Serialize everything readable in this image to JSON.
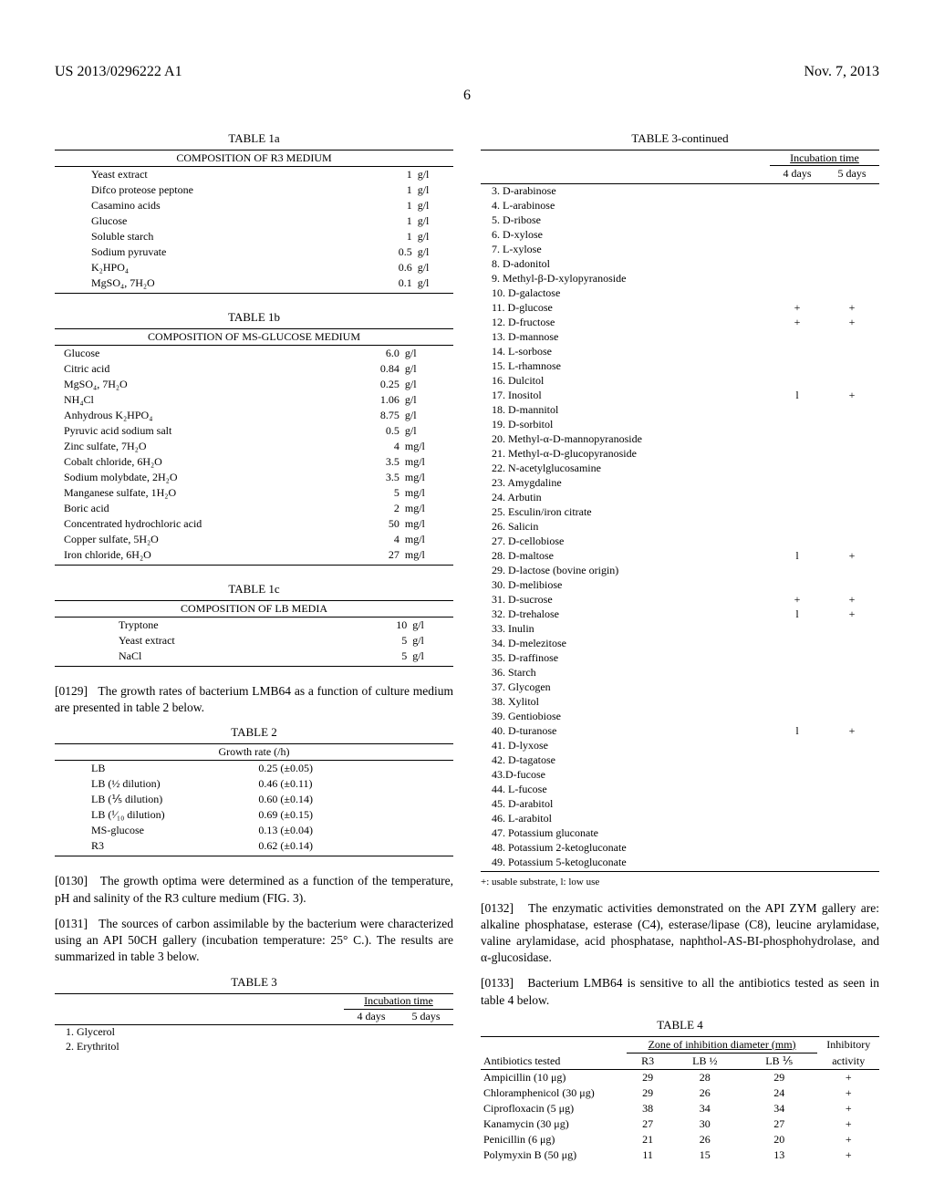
{
  "header": {
    "left": "US 2013/0296222 A1",
    "right": "Nov. 7, 2013"
  },
  "page_number": "6",
  "tables": {
    "t1a": {
      "title": "TABLE 1a",
      "subtitle": "COMPOSITION OF R3 MEDIUM",
      "rows": [
        [
          "Yeast extract",
          "1",
          "g/l"
        ],
        [
          "Difco proteose peptone",
          "1",
          "g/l"
        ],
        [
          "Casamino acids",
          "1",
          "g/l"
        ],
        [
          "Glucose",
          "1",
          "g/l"
        ],
        [
          "Soluble starch",
          "1",
          "g/l"
        ],
        [
          "Sodium pyruvate",
          "0.5",
          "g/l"
        ],
        [
          "K₂HPO₄",
          "0.6",
          "g/l"
        ],
        [
          "MgSO₄, 7H₂O",
          "0.1",
          "g/l"
        ]
      ]
    },
    "t1b": {
      "title": "TABLE 1b",
      "subtitle": "COMPOSITION OF MS-GLUCOSE MEDIUM",
      "rows": [
        [
          "Glucose",
          "6.0",
          "g/l"
        ],
        [
          "Citric acid",
          "0.84",
          "g/l"
        ],
        [
          "MgSO₄, 7H₂O",
          "0.25",
          "g/l"
        ],
        [
          "NH₄Cl",
          "1.06",
          "g/l"
        ],
        [
          "Anhydrous K₂HPO₄",
          "8.75",
          "g/l"
        ],
        [
          "Pyruvic acid sodium salt",
          "0.5",
          "g/l"
        ],
        [
          "Zinc sulfate, 7H₂O",
          "4",
          "mg/l"
        ],
        [
          "Cobalt chloride, 6H₂O",
          "3.5",
          "mg/l"
        ],
        [
          "Sodium molybdate, 2H₂O",
          "3.5",
          "mg/l"
        ],
        [
          "Manganese sulfate, 1H₂O",
          "5",
          "mg/l"
        ],
        [
          "Boric acid",
          "2",
          "mg/l"
        ],
        [
          "Concentrated hydrochloric acid",
          "50",
          "mg/l"
        ],
        [
          "Copper sulfate, 5H₂O",
          "4",
          "mg/l"
        ],
        [
          "Iron chloride, 6H₂O",
          "27",
          "mg/l"
        ]
      ]
    },
    "t1c": {
      "title": "TABLE 1c",
      "subtitle": "COMPOSITION OF LB MEDIA",
      "rows": [
        [
          "Tryptone",
          "10",
          "g/l"
        ],
        [
          "Yeast extract",
          "5",
          "g/l"
        ],
        [
          "NaCl",
          "5",
          "g/l"
        ]
      ]
    },
    "t2": {
      "title": "TABLE 2",
      "subtitle": "Growth rate (/h)",
      "rows": [
        [
          "LB",
          "0.25 (±0.05)"
        ],
        [
          "LB (½ dilution)",
          "0.46 (±0.11)"
        ],
        [
          "LB (⅕ dilution)",
          "0.60 (±0.14)"
        ],
        [
          "LB (¹⁄₁₀ dilution)",
          "0.69 (±0.15)"
        ],
        [
          "MS-glucose",
          "0.13 (±0.04)"
        ],
        [
          "R3",
          "0.62 (±0.14)"
        ]
      ]
    },
    "t3_head": {
      "title": "TABLE 3",
      "col_group": "Incubation time",
      "cols": [
        "4 days",
        "5 days"
      ],
      "rows_left": [
        [
          "1. Glycerol",
          "",
          ""
        ],
        [
          "2. Erythritol",
          "",
          ""
        ]
      ]
    },
    "t3_cont": {
      "title": "TABLE 3-continued",
      "col_group": "Incubation time",
      "cols": [
        "4 days",
        "5 days"
      ],
      "rows": [
        [
          "3. D-arabinose",
          "",
          ""
        ],
        [
          "4. L-arabinose",
          "",
          ""
        ],
        [
          "5. D-ribose",
          "",
          ""
        ],
        [
          "6. D-xylose",
          "",
          ""
        ],
        [
          "7. L-xylose",
          "",
          ""
        ],
        [
          "8. D-adonitol",
          "",
          ""
        ],
        [
          "9. Methyl-β-D-xylopyranoside",
          "",
          ""
        ],
        [
          "10. D-galactose",
          "",
          ""
        ],
        [
          "11. D-glucose",
          "+",
          "+"
        ],
        [
          "12. D-fructose",
          "+",
          "+"
        ],
        [
          "13. D-mannose",
          "",
          ""
        ],
        [
          "14. L-sorbose",
          "",
          ""
        ],
        [
          "15. L-rhamnose",
          "",
          ""
        ],
        [
          "16. Dulcitol",
          "",
          ""
        ],
        [
          "17. Inositol",
          "l",
          "+"
        ],
        [
          "18. D-mannitol",
          "",
          ""
        ],
        [
          "19. D-sorbitol",
          "",
          ""
        ],
        [
          "20. Methyl-α-D-mannopyranoside",
          "",
          ""
        ],
        [
          "21. Methyl-α-D-glucopyranoside",
          "",
          ""
        ],
        [
          "22. N-acetylglucosamine",
          "",
          ""
        ],
        [
          "23. Amygdaline",
          "",
          ""
        ],
        [
          "24. Arbutin",
          "",
          ""
        ],
        [
          "25. Esculin/iron citrate",
          "",
          ""
        ],
        [
          "26. Salicin",
          "",
          ""
        ],
        [
          "27. D-cellobiose",
          "",
          ""
        ],
        [
          "28. D-maltose",
          "l",
          "+"
        ],
        [
          "29. D-lactose (bovine origin)",
          "",
          ""
        ],
        [
          "30. D-melibiose",
          "",
          ""
        ],
        [
          "31. D-sucrose",
          "+",
          "+"
        ],
        [
          "32. D-trehalose",
          "l",
          "+"
        ],
        [
          "33. Inulin",
          "",
          ""
        ],
        [
          "34. D-melezitose",
          "",
          ""
        ],
        [
          "35. D-raffinose",
          "",
          ""
        ],
        [
          "36. Starch",
          "",
          ""
        ],
        [
          "37. Glycogen",
          "",
          ""
        ],
        [
          "38. Xylitol",
          "",
          ""
        ],
        [
          "39. Gentiobiose",
          "",
          ""
        ],
        [
          "40. D-turanose",
          "l",
          "+"
        ],
        [
          "41. D-lyxose",
          "",
          ""
        ],
        [
          "42. D-tagatose",
          "",
          ""
        ],
        [
          "43.D-fucose",
          "",
          ""
        ],
        [
          "44. L-fucose",
          "",
          ""
        ],
        [
          "45. D-arabitol",
          "",
          ""
        ],
        [
          "46. L-arabitol",
          "",
          ""
        ],
        [
          "47. Potassium gluconate",
          "",
          ""
        ],
        [
          "48. Potassium 2-ketogluconate",
          "",
          ""
        ],
        [
          "49. Potassium 5-ketogluconate",
          "",
          ""
        ]
      ],
      "footnote": "+: usable substrate, l: low use"
    },
    "t4": {
      "title": "TABLE 4",
      "group1": "Zone of inhibition diameter (mm)",
      "group2": "Inhibitory",
      "cols": [
        "Antibiotics tested",
        "R3",
        "LB ½",
        "LB ⅕",
        "activity"
      ],
      "rows": [
        [
          "Ampicillin (10 μg)",
          "29",
          "28",
          "29",
          "+"
        ],
        [
          "Chloramphenicol (30 μg)",
          "29",
          "26",
          "24",
          "+"
        ],
        [
          "Ciprofloxacin (5 μg)",
          "38",
          "34",
          "34",
          "+"
        ],
        [
          "Kanamycin (30 μg)",
          "27",
          "30",
          "27",
          "+"
        ],
        [
          "Penicillin (6 μg)",
          "21",
          "26",
          "20",
          "+"
        ],
        [
          "Polymyxin B (50 μg)",
          "11",
          "15",
          "13",
          "+"
        ]
      ]
    }
  },
  "paragraphs": {
    "p0129": {
      "num": "[0129]",
      "text": "The growth rates of bacterium LMB64 as a function of culture medium are presented in table 2 below."
    },
    "p0130": {
      "num": "[0130]",
      "text": "The growth optima were determined as a function of the temperature, pH and salinity of the R3 culture medium (FIG. 3)."
    },
    "p0131": {
      "num": "[0131]",
      "text": "The sources of carbon assimilable by the bacterium were characterized using an API 50CH gallery (incubation temperature: 25° C.). The results are summarized in table 3 below."
    },
    "p0132": {
      "num": "[0132]",
      "text": "The enzymatic activities demonstrated on the API ZYM gallery are: alkaline phosphatase, esterase (C4), esterase/lipase (C8), leucine arylamidase, valine arylamidase, acid phosphatase, naphthol-AS-BI-phosphohydrolase, and α-glucosidase."
    },
    "p0133": {
      "num": "[0133]",
      "text": "Bacterium LMB64 is sensitive to all the antibiotics tested as seen in table 4 below."
    }
  }
}
